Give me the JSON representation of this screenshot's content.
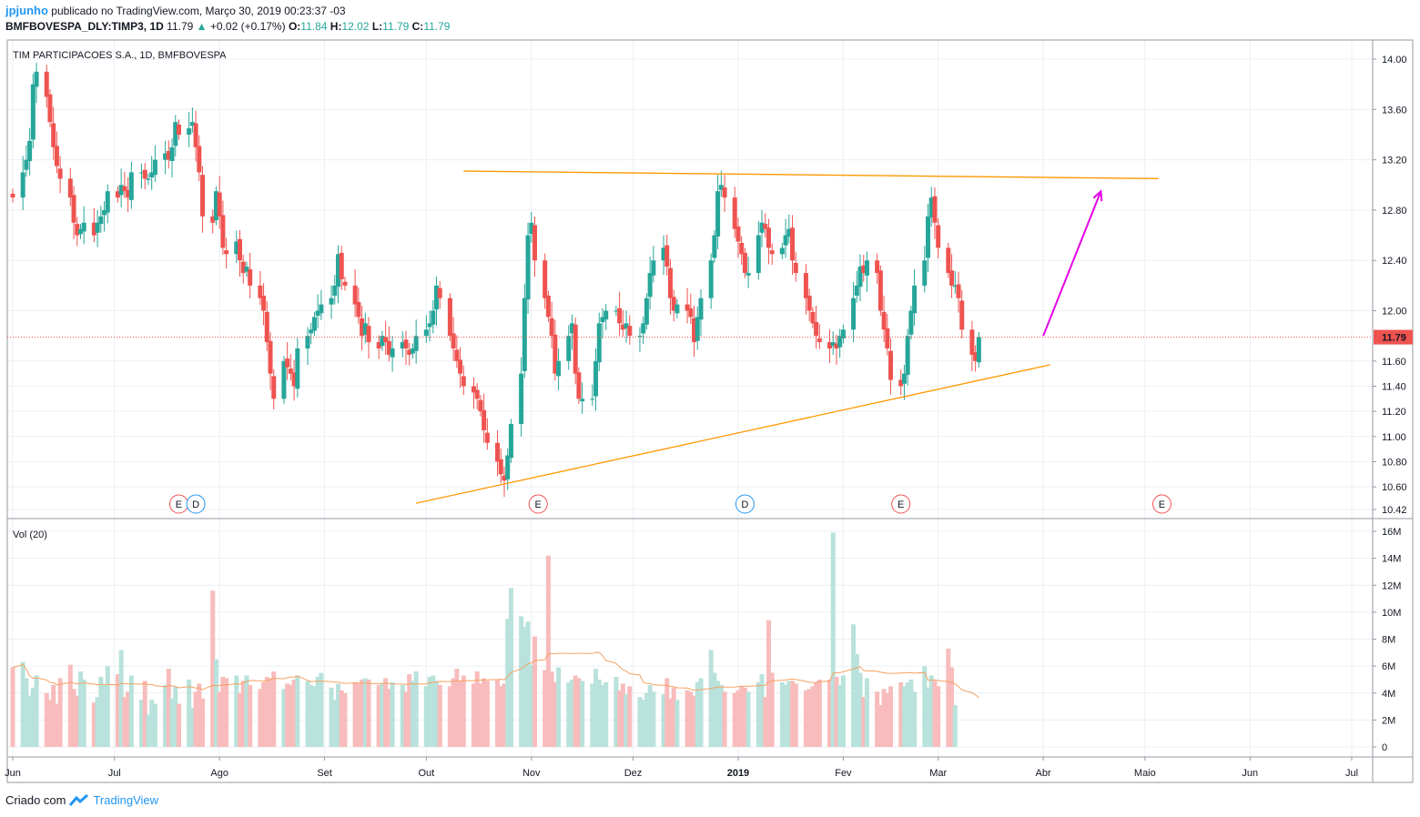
{
  "header": {
    "author": "jpjunho",
    "published": "publicado no TradingView.com, Março 30, 2019 00:23:37 -03",
    "symbol": "BMFBOVESPA_DLY:TIMP3, 1D",
    "last": "11.79",
    "change": "+0.02 (+0.17%)",
    "o_label": "O:",
    "o_value": "11.84",
    "h_label": "H:",
    "h_value": "12.02",
    "l_label": "L:",
    "l_value": "11.79",
    "c_label": "C:",
    "c_value": "11.79",
    "up_arrow": "▲"
  },
  "footer": {
    "created": "Criado com",
    "brand": "TradingView",
    "logo_icon": "tradingview-logo-icon"
  },
  "colors": {
    "up": "#26a69a",
    "down": "#ef5350",
    "vol_up": "#b8e2db",
    "vol_down": "#f8bcbc",
    "trendline": "#ff9800",
    "projection": "#e600e6",
    "ma": "#f5a263",
    "last_price": "#ef5350",
    "grid": "#eceff4",
    "event": "#ef5350",
    "dividend": "#2196f3"
  },
  "chart_data": [
    {
      "type": "candlestick",
      "title": "TIM PARTICIPACOES S.A., 1D, BMFBOVESPA",
      "x_labels": [
        "Jun",
        "Jul",
        "Ago",
        "Set",
        "Out",
        "Nov",
        "Dez",
        "2019",
        "Fev",
        "Mar",
        "Abr",
        "Maio",
        "Jun",
        "Jul"
      ],
      "y_ticks": [
        "14.00",
        "13.60",
        "13.20",
        "12.80",
        "12.40",
        "12.00",
        "11.60",
        "11.40",
        "11.20",
        "11.00",
        "10.80",
        "10.60",
        "10.42"
      ],
      "ylim": [
        10.42,
        14.1
      ],
      "last_price": "11.79",
      "closes": [
        12.9,
        13.1,
        13.2,
        13.35,
        13.8,
        13.9,
        13.7,
        13.5,
        13.3,
        13.15,
        13.05,
        12.9,
        12.7,
        12.6,
        12.65,
        12.7,
        12.6,
        12.7,
        12.75,
        12.8,
        12.95,
        12.9,
        13.0,
        12.95,
        12.9,
        13.1,
        13.1,
        13.05,
        13.05,
        13.1,
        13.2,
        13.25,
        13.2,
        13.3,
        13.5,
        13.4,
        13.45,
        13.5,
        13.3,
        13.1,
        12.75,
        12.7,
        12.95,
        12.75,
        12.5,
        12.45,
        12.55,
        12.4,
        12.3,
        12.35,
        12.2,
        12.1,
        12.0,
        11.75,
        11.5,
        11.3,
        11.6,
        11.55,
        11.5,
        11.4,
        11.7,
        11.8,
        11.85,
        11.95,
        12.0,
        12.05,
        12.1,
        12.2,
        12.45,
        12.25,
        12.2,
        12.05,
        11.95,
        11.8,
        11.9,
        11.75,
        11.7,
        11.8,
        11.75,
        11.65,
        11.7,
        11.75,
        11.7,
        11.65,
        11.7,
        11.8,
        11.85,
        11.9,
        12.0,
        12.2,
        12.1,
        11.8,
        11.7,
        11.6,
        11.5,
        11.4,
        11.35,
        11.3,
        11.2,
        11.05,
        10.95,
        10.8,
        10.7,
        10.65,
        10.85,
        11.1,
        11.5,
        12.1,
        12.6,
        12.7,
        12.4,
        12.1,
        11.95,
        11.8,
        11.5,
        11.6,
        11.8,
        11.9,
        11.5,
        11.3,
        11.3,
        11.3,
        11.6,
        11.9,
        11.95,
        12.0,
        12.0,
        11.9,
        11.85,
        11.9,
        11.8,
        11.8,
        11.9,
        12.1,
        12.3,
        12.4,
        12.5,
        12.35,
        12.1,
        12.0,
        12.05,
        12.0,
        11.95,
        11.75,
        11.95,
        12.1,
        12.4,
        12.6,
        12.95,
        13.0,
        12.9,
        12.65,
        12.55,
        12.45,
        12.3,
        12.3,
        12.6,
        12.7,
        12.65,
        12.5,
        12.45,
        12.5,
        12.6,
        12.65,
        12.4,
        12.3,
        12.1,
        12.0,
        11.9,
        11.8,
        11.75,
        11.7,
        11.75,
        11.7,
        11.8,
        11.85,
        12.1,
        12.2,
        12.35,
        12.3,
        12.4,
        12.3,
        12.0,
        11.85,
        11.7,
        11.45,
        11.4,
        11.5,
        11.8,
        12.0,
        12.2,
        12.4,
        12.75,
        12.9,
        12.7,
        12.5,
        12.3,
        12.2,
        12.2,
        12.1,
        11.85,
        11.65,
        11.6,
        11.79
      ],
      "volume_ylim": [
        0,
        16
      ],
      "volume_ticks": [
        "16M",
        "14M",
        "12M",
        "10M",
        "8M",
        "6M",
        "4M",
        "2M",
        "0"
      ],
      "volume_series_name": "Vol (20)",
      "volumes_m": [
        5.9,
        6.3,
        5.1,
        3.8,
        4.4,
        5.3,
        4.0,
        3.5,
        4.6,
        3.2,
        5.1,
        6.1,
        4.3,
        3.8,
        5.6,
        5.0,
        3.3,
        3.7,
        5.2,
        4.6,
        6.0,
        5.4,
        7.2,
        3.7,
        4.1,
        5.3,
        3.5,
        4.9,
        2.4,
        3.5,
        3.2,
        4.6,
        5.8,
        3.6,
        4.5,
        3.2,
        5.0,
        2.9,
        4.1,
        4.7,
        3.6,
        11.6,
        6.5,
        4.1,
        5.2,
        5.1,
        5.3,
        4.0,
        4.9,
        5.3,
        4.6,
        4.3,
        4.8,
        5.2,
        5.1,
        5.6,
        4.3,
        4.7,
        4.6,
        5.0,
        5.3,
        4.9,
        4.6,
        4.5,
        5.2,
        5.5,
        4.4,
        3.5,
        4.7,
        4.2,
        4.0,
        4.8,
        4.7,
        5.0,
        5.1,
        5.0,
        4.6,
        4.7,
        5.1,
        4.3,
        4.8,
        4.6,
        4.1,
        5.4,
        4.9,
        5.6,
        4.5,
        5.2,
        5.3,
        4.9,
        4.6,
        4.5,
        5.1,
        5.8,
        4.9,
        5.3,
        4.7,
        5.6,
        4.7,
        5.1,
        4.9,
        5.0,
        4.5,
        4.7,
        9.5,
        11.8,
        9.7,
        8.9,
        9.3,
        6.1,
        8.2,
        5.7,
        14.2,
        5.6,
        4.8,
        5.9,
        4.8,
        5.0,
        5.3,
        5.1,
        4.9,
        4.7,
        5.8,
        5.0,
        4.6,
        4.8,
        5.2,
        4.2,
        4.7,
        3.9,
        4.5,
        3.7,
        3.5,
        4.0,
        4.6,
        4.1,
        3.9,
        5.1,
        3.6,
        4.4,
        3.5,
        4.2,
        4.1,
        3.8,
        4.8,
        5.1,
        7.2,
        5.5,
        4.9,
        4.6,
        4.1,
        4.0,
        4.2,
        4.5,
        4.4,
        4.1,
        4.8,
        5.4,
        3.7,
        9.4,
        5.5,
        4.8,
        4.6,
        4.9,
        4.9,
        4.7,
        4.2,
        4.3,
        4.5,
        4.8,
        5.0,
        5.0,
        15.9,
        5.2,
        4.6,
        5.3,
        9.1,
        6.9,
        5.5,
        3.7,
        5.1,
        4.1,
        3.1,
        4.3,
        4.0,
        4.5,
        4.8,
        4.5,
        4.8,
        5.0,
        4.1,
        6.0,
        4.4,
        5.3,
        4.9,
        4.5,
        7.3,
        5.9,
        3.1
      ],
      "annotations": [
        {
          "label": "E",
          "kind": "earnings",
          "x_label": "Jul"
        },
        {
          "label": "D",
          "kind": "dividend",
          "x_label": "Jul"
        },
        {
          "label": "E",
          "kind": "earnings",
          "x_label": "Nov"
        },
        {
          "label": "D",
          "kind": "dividend",
          "x_label": "2019"
        },
        {
          "label": "E",
          "kind": "earnings",
          "x_label": "Fev"
        },
        {
          "label": "E",
          "kind": "earnings",
          "x_label": "Maio"
        }
      ],
      "drawings": {
        "resistance": [
          {
            "date": "2018-10-12",
            "price": 13.11
          },
          {
            "date": "2019-05-05",
            "price": 13.05
          }
        ],
        "support": [
          {
            "date": "2018-09-28",
            "price": 10.47
          },
          {
            "date": "2019-04-03",
            "price": 11.57
          }
        ],
        "projection_arrow": [
          {
            "date": "2019-04-01",
            "price": 11.8
          },
          {
            "date": "2019-04-18",
            "price": 12.95
          }
        ]
      }
    }
  ]
}
